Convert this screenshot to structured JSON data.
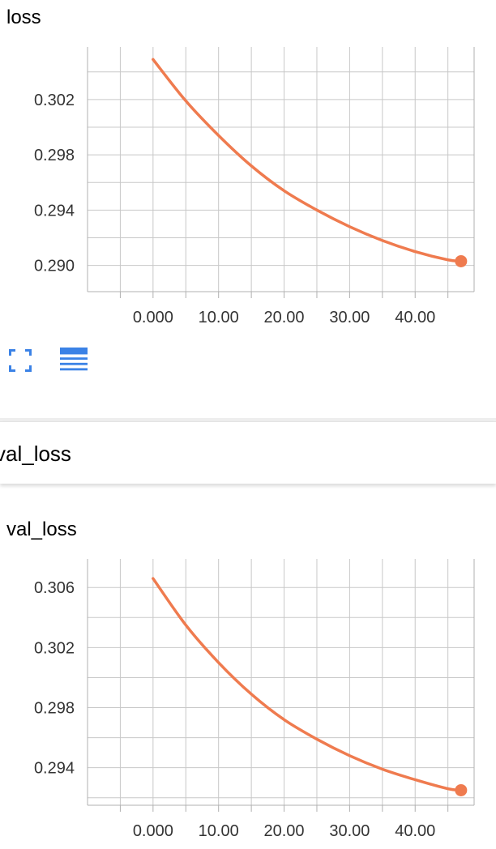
{
  "theme": {
    "series_color": "#ef7b4f",
    "toolbar_icon_color": "#3b82e6"
  },
  "section": {
    "header_label": "val_loss"
  },
  "toolbar": {
    "fullscreen_icon": "fullscreen-icon",
    "data_table_icon": "list-icon"
  },
  "chart_data": [
    {
      "type": "line",
      "title": "loss",
      "xlabel": "",
      "ylabel": "",
      "xlim": [
        -10,
        49
      ],
      "ylim": [
        0.2881,
        0.3058
      ],
      "xticks": [
        "0.000",
        "10.00",
        "20.00",
        "30.00",
        "40.00"
      ],
      "yticks": [
        "0.290",
        "0.294",
        "0.298",
        "0.302"
      ],
      "grid": true,
      "series": [
        {
          "x": [
            0,
            5,
            10,
            15,
            20,
            25,
            30,
            35,
            40,
            45,
            47
          ],
          "y": [
            0.3049,
            0.3019,
            0.2994,
            0.2972,
            0.2954,
            0.294,
            0.2928,
            0.2918,
            0.291,
            0.2904,
            0.2903
          ]
        }
      ]
    },
    {
      "type": "line",
      "title": "val_loss",
      "xlabel": "",
      "ylabel": "",
      "xlim": [
        -10,
        49
      ],
      "ylim": [
        0.2915,
        0.3079
      ],
      "xticks": [
        "0.000",
        "10.00",
        "20.00",
        "30.00",
        "40.00"
      ],
      "yticks": [
        "0.294",
        "0.298",
        "0.302",
        "0.306"
      ],
      "grid": true,
      "series": [
        {
          "x": [
            0,
            5,
            10,
            15,
            20,
            25,
            30,
            35,
            40,
            45,
            47
          ],
          "y": [
            0.3066,
            0.3035,
            0.301,
            0.2989,
            0.2972,
            0.2959,
            0.2948,
            0.2939,
            0.2932,
            0.2926,
            0.2925
          ]
        }
      ]
    }
  ]
}
